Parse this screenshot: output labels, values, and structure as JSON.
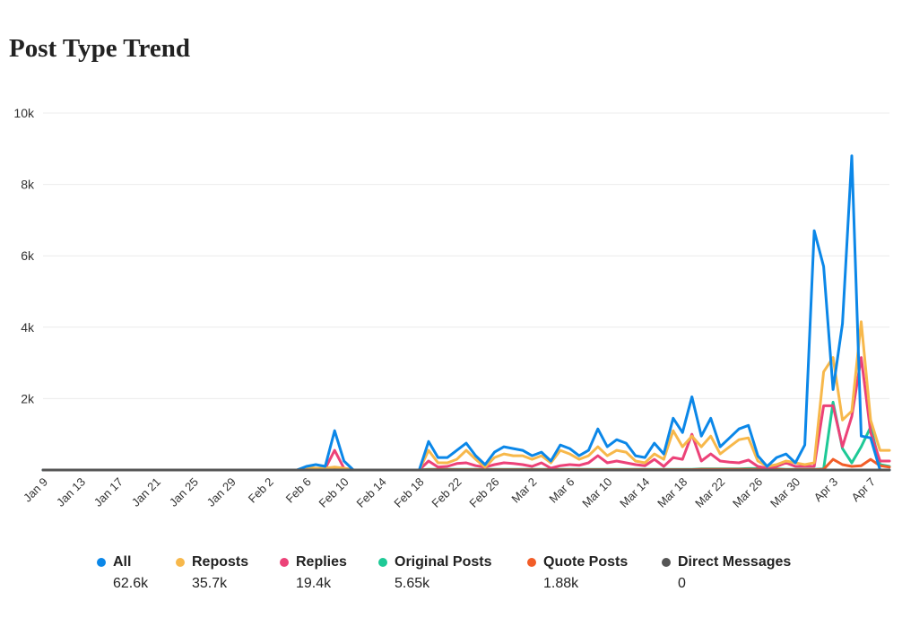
{
  "title": "Post Type Trend",
  "chart_data": {
    "type": "line",
    "title": "Post Type Trend",
    "ylim": [
      0,
      10000
    ],
    "yticks": [
      {
        "value": 2000,
        "label": "2k"
      },
      {
        "value": 4000,
        "label": "4k"
      },
      {
        "value": 6000,
        "label": "6k"
      },
      {
        "value": 8000,
        "label": "8k"
      },
      {
        "value": 10000,
        "label": "10k"
      }
    ],
    "x": [
      "2024-01-09",
      "2024-01-10",
      "2024-01-11",
      "2024-01-12",
      "2024-01-13",
      "2024-01-14",
      "2024-01-15",
      "2024-01-16",
      "2024-01-17",
      "2024-01-18",
      "2024-01-19",
      "2024-01-20",
      "2024-01-21",
      "2024-01-22",
      "2024-01-23",
      "2024-01-24",
      "2024-01-25",
      "2024-01-26",
      "2024-01-27",
      "2024-01-28",
      "2024-01-29",
      "2024-01-30",
      "2024-01-31",
      "2024-02-01",
      "2024-02-02",
      "2024-02-03",
      "2024-02-04",
      "2024-02-05",
      "2024-02-06",
      "2024-02-07",
      "2024-02-08",
      "2024-02-09",
      "2024-02-10",
      "2024-02-11",
      "2024-02-12",
      "2024-02-13",
      "2024-02-14",
      "2024-02-15",
      "2024-02-16",
      "2024-02-17",
      "2024-02-18",
      "2024-02-19",
      "2024-02-20",
      "2024-02-21",
      "2024-02-22",
      "2024-02-23",
      "2024-02-24",
      "2024-02-25",
      "2024-02-26",
      "2024-02-27",
      "2024-02-28",
      "2024-02-29",
      "2024-03-01",
      "2024-03-02",
      "2024-03-03",
      "2024-03-04",
      "2024-03-05",
      "2024-03-06",
      "2024-03-07",
      "2024-03-08",
      "2024-03-09",
      "2024-03-10",
      "2024-03-11",
      "2024-03-12",
      "2024-03-13",
      "2024-03-14",
      "2024-03-15",
      "2024-03-16",
      "2024-03-17",
      "2024-03-18",
      "2024-03-19",
      "2024-03-20",
      "2024-03-21",
      "2024-03-22",
      "2024-03-23",
      "2024-03-24",
      "2024-03-25",
      "2024-03-26",
      "2024-03-27",
      "2024-03-28",
      "2024-03-29",
      "2024-03-30",
      "2024-03-31",
      "2024-04-01",
      "2024-04-02",
      "2024-04-03",
      "2024-04-04",
      "2024-04-05",
      "2024-04-06",
      "2024-04-07",
      "2024-04-08"
    ],
    "xtick_labels": [
      "Jan 9",
      "Jan 13",
      "Jan 17",
      "Jan 21",
      "Jan 25",
      "Jan 29",
      "Feb 2",
      "Feb 6",
      "Feb 10",
      "Feb 14",
      "Feb 18",
      "Feb 22",
      "Feb 26",
      "Mar 2",
      "Mar 6",
      "Mar 10",
      "Mar 14",
      "Mar 18",
      "Mar 22",
      "Mar 26",
      "Mar 30",
      "Apr 3",
      "Apr 7"
    ],
    "series": [
      {
        "name": "Original Posts",
        "color": "#1ec996",
        "total": "5.65k",
        "values": [
          0,
          0,
          0,
          0,
          0,
          0,
          0,
          0,
          0,
          0,
          0,
          0,
          0,
          0,
          0,
          0,
          0,
          0,
          0,
          0,
          0,
          0,
          0,
          0,
          0,
          0,
          0,
          0,
          40,
          30,
          30,
          30,
          20,
          0,
          0,
          0,
          0,
          0,
          0,
          0,
          0,
          20,
          20,
          20,
          20,
          20,
          20,
          20,
          20,
          20,
          20,
          20,
          20,
          20,
          20,
          20,
          20,
          20,
          20,
          20,
          20,
          20,
          20,
          20,
          20,
          20,
          20,
          20,
          20,
          20,
          30,
          30,
          30,
          30,
          30,
          40,
          40,
          40,
          30,
          20,
          20,
          20,
          20,
          30,
          1900,
          600,
          200,
          650,
          1200,
          150,
          100
        ]
      },
      {
        "name": "Quote Posts",
        "color": "#f25d28",
        "total": "1.88k",
        "values": [
          0,
          0,
          0,
          0,
          0,
          0,
          0,
          0,
          0,
          0,
          0,
          0,
          0,
          0,
          0,
          0,
          0,
          0,
          0,
          0,
          0,
          0,
          0,
          0,
          0,
          0,
          0,
          0,
          10,
          10,
          10,
          10,
          10,
          0,
          0,
          0,
          0,
          0,
          0,
          0,
          0,
          10,
          10,
          10,
          10,
          10,
          10,
          10,
          10,
          10,
          10,
          10,
          10,
          10,
          10,
          10,
          10,
          10,
          10,
          10,
          10,
          10,
          10,
          10,
          10,
          10,
          10,
          10,
          10,
          10,
          20,
          20,
          20,
          20,
          20,
          20,
          20,
          20,
          20,
          10,
          10,
          10,
          10,
          20,
          300,
          150,
          100,
          120,
          300,
          120,
          80
        ]
      },
      {
        "name": "Replies",
        "color": "#ec4278",
        "total": "19.4k",
        "values": [
          0,
          0,
          0,
          0,
          0,
          0,
          0,
          0,
          0,
          0,
          0,
          0,
          0,
          0,
          0,
          0,
          0,
          0,
          0,
          0,
          0,
          0,
          0,
          0,
          0,
          0,
          0,
          0,
          50,
          40,
          40,
          550,
          50,
          0,
          0,
          0,
          0,
          0,
          0,
          0,
          0,
          250,
          80,
          100,
          180,
          200,
          120,
          80,
          150,
          200,
          180,
          150,
          100,
          200,
          50,
          120,
          150,
          130,
          200,
          400,
          200,
          250,
          200,
          150,
          120,
          300,
          100,
          350,
          300,
          1000,
          250,
          450,
          250,
          220,
          200,
          280,
          100,
          50,
          100,
          200,
          100,
          100,
          100,
          1800,
          1800,
          650,
          1500,
          3150,
          1050,
          250,
          250
        ]
      },
      {
        "name": "Reposts",
        "color": "#f7b84b",
        "total": "35.7k",
        "values": [
          0,
          0,
          0,
          0,
          0,
          0,
          0,
          0,
          0,
          0,
          0,
          0,
          0,
          0,
          0,
          0,
          0,
          0,
          0,
          0,
          0,
          0,
          0,
          0,
          0,
          0,
          0,
          0,
          80,
          50,
          50,
          80,
          50,
          0,
          0,
          0,
          0,
          0,
          0,
          0,
          0,
          550,
          200,
          200,
          300,
          550,
          300,
          80,
          350,
          450,
          400,
          400,
          300,
          400,
          200,
          550,
          450,
          300,
          400,
          650,
          400,
          550,
          500,
          250,
          200,
          450,
          300,
          1100,
          650,
          950,
          650,
          950,
          450,
          650,
          850,
          900,
          250,
          100,
          150,
          250,
          200,
          150,
          200,
          2750,
          3150,
          1400,
          1650,
          4150,
          1400,
          550,
          550
        ]
      },
      {
        "name": "All",
        "color": "#0b87e8",
        "total": "62.6k",
        "values": [
          0,
          0,
          0,
          0,
          0,
          0,
          0,
          0,
          0,
          0,
          0,
          0,
          0,
          0,
          0,
          0,
          0,
          0,
          0,
          0,
          0,
          0,
          0,
          0,
          0,
          0,
          0,
          0,
          100,
          150,
          100,
          1100,
          250,
          0,
          0,
          0,
          0,
          0,
          0,
          0,
          0,
          800,
          350,
          350,
          550,
          750,
          400,
          150,
          500,
          650,
          600,
          550,
          400,
          500,
          250,
          700,
          600,
          400,
          550,
          1150,
          650,
          850,
          750,
          400,
          350,
          750,
          450,
          1450,
          1050,
          2050,
          950,
          1450,
          650,
          900,
          1150,
          1250,
          400,
          100,
          350,
          450,
          200,
          700,
          6700,
          5700,
          2250,
          4100,
          8800,
          950,
          900,
          0,
          0
        ]
      },
      {
        "name": "Direct Messages",
        "color": "#555555",
        "total": "0",
        "values": [
          0,
          0,
          0,
          0,
          0,
          0,
          0,
          0,
          0,
          0,
          0,
          0,
          0,
          0,
          0,
          0,
          0,
          0,
          0,
          0,
          0,
          0,
          0,
          0,
          0,
          0,
          0,
          0,
          0,
          0,
          0,
          0,
          0,
          0,
          0,
          0,
          0,
          0,
          0,
          0,
          0,
          0,
          0,
          0,
          0,
          0,
          0,
          0,
          0,
          0,
          0,
          0,
          0,
          0,
          0,
          0,
          0,
          0,
          0,
          0,
          0,
          0,
          0,
          0,
          0,
          0,
          0,
          0,
          0,
          0,
          0,
          0,
          0,
          0,
          0,
          0,
          0,
          0,
          0,
          0,
          0,
          0,
          0,
          0,
          0,
          0,
          0,
          0,
          0,
          0,
          0
        ]
      }
    ],
    "legend": [
      {
        "name": "All",
        "color": "#0b87e8",
        "total": "62.6k"
      },
      {
        "name": "Reposts",
        "color": "#f7b84b",
        "total": "35.7k"
      },
      {
        "name": "Replies",
        "color": "#ec4278",
        "total": "19.4k"
      },
      {
        "name": "Original Posts",
        "color": "#1ec996",
        "total": "5.65k"
      },
      {
        "name": "Quote Posts",
        "color": "#f25d28",
        "total": "1.88k"
      },
      {
        "name": "Direct Messages",
        "color": "#555555",
        "total": "0"
      }
    ],
    "legend_position": "bottom",
    "grid": true
  }
}
